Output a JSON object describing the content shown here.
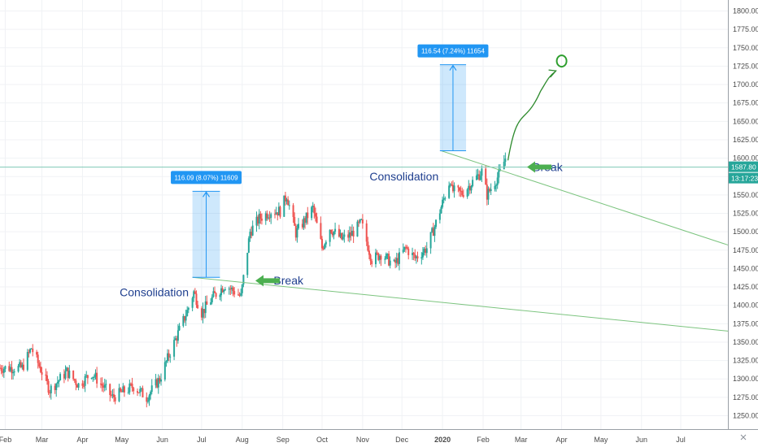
{
  "chart_data": {
    "type": "candlestick",
    "y_axis": {
      "ylim": [
        1235,
        1810
      ],
      "tick_labels": [
        "1250.00",
        "1275.00",
        "1300.00",
        "1325.00",
        "1350.00",
        "1375.00",
        "1400.00",
        "1425.00",
        "1450.00",
        "1475.00",
        "1500.00",
        "1525.00",
        "1550.00",
        "1575.00",
        "1600.00",
        "1625.00",
        "1650.00",
        "1675.00",
        "1700.00",
        "1725.00",
        "1750.00",
        "1775.00",
        "1800.00"
      ]
    },
    "x_axis": {
      "tick_labels": [
        "Feb",
        "Mar",
        "Apr",
        "May",
        "Jun",
        "Jul",
        "Aug",
        "Sep",
        "Oct",
        "Nov",
        "Dec",
        "2020",
        "Feb",
        "Mar",
        "Apr",
        "May",
        "Jun",
        "Jul"
      ],
      "tick_dates": [
        "2019-02-01",
        "2019-03-01",
        "2019-04-01",
        "2019-05-01",
        "2019-06-01",
        "2019-07-01",
        "2019-08-01",
        "2019-09-01",
        "2019-10-01",
        "2019-11-01",
        "2019-12-01",
        "2020-01-01",
        "2020-02-01",
        "2020-03-01",
        "2020-04-01",
        "2020-05-01",
        "2020-06-01",
        "2020-07-01"
      ],
      "range": [
        "2019-01-28",
        "2020-08-06"
      ]
    },
    "colors": {
      "up": "#26a69a",
      "down": "#ef5350",
      "trend": "#7cc47f",
      "arrow": "#4caf50",
      "measure": "#2196f3",
      "annotation": "#1f3f8f"
    },
    "price_path": [
      [
        "2019-01-28",
        1315
      ],
      [
        "2019-02-14",
        1315
      ],
      [
        "2019-02-21",
        1342
      ],
      [
        "2019-03-07",
        1285
      ],
      [
        "2019-03-20",
        1310
      ],
      [
        "2019-03-29",
        1292
      ],
      [
        "2019-04-08",
        1308
      ],
      [
        "2019-04-24",
        1275
      ],
      [
        "2019-05-10",
        1290
      ],
      [
        "2019-05-20",
        1275
      ],
      [
        "2019-05-30",
        1300
      ],
      [
        "2019-06-06",
        1332
      ],
      [
        "2019-06-20",
        1392
      ],
      [
        "2019-06-25",
        1418
      ],
      [
        "2019-07-01",
        1390
      ],
      [
        "2019-07-10",
        1412
      ],
      [
        "2019-07-19",
        1428
      ],
      [
        "2019-07-31",
        1412
      ],
      [
        "2019-08-07",
        1500
      ],
      [
        "2019-08-14",
        1518
      ],
      [
        "2019-08-23",
        1528
      ],
      [
        "2019-08-30",
        1528
      ],
      [
        "2019-09-04",
        1550
      ],
      [
        "2019-09-11",
        1498
      ],
      [
        "2019-09-24",
        1532
      ],
      [
        "2019-10-01",
        1478
      ],
      [
        "2019-10-07",
        1505
      ],
      [
        "2019-10-16",
        1490
      ],
      [
        "2019-10-23",
        1496
      ],
      [
        "2019-10-31",
        1512
      ],
      [
        "2019-11-08",
        1462
      ],
      [
        "2019-11-15",
        1470
      ],
      [
        "2019-11-25",
        1455
      ],
      [
        "2019-12-04",
        1478
      ],
      [
        "2019-12-11",
        1464
      ],
      [
        "2019-12-20",
        1478
      ],
      [
        "2019-12-27",
        1512
      ],
      [
        "2020-01-03",
        1550
      ],
      [
        "2020-01-07",
        1572
      ],
      [
        "2020-01-08",
        1556
      ],
      [
        "2020-01-16",
        1552
      ],
      [
        "2020-01-24",
        1568
      ],
      [
        "2020-01-31",
        1582
      ],
      [
        "2020-02-04",
        1550
      ],
      [
        "2020-02-14",
        1580
      ],
      [
        "2020-02-18",
        1600
      ]
    ],
    "current_price": 1587.8,
    "price_label": "1587.80",
    "countdown_label": "13:17:23",
    "annotations": [
      {
        "kind": "text",
        "text": "Consolidation"
      },
      {
        "kind": "text",
        "text": "Break"
      },
      {
        "kind": "text",
        "text": "Consolidation"
      },
      {
        "kind": "text",
        "text": "Break"
      }
    ],
    "measures": [
      {
        "from": [
          "2019-06-24",
          1438
        ],
        "to": [
          "2019-07-15",
          1555
        ],
        "label": "116.09 (8.07%) 11609"
      },
      {
        "from": [
          "2019-12-30",
          1610
        ],
        "to": [
          "2020-01-19",
          1727
        ],
        "label": "116.54 (7.24%) 11654"
      }
    ],
    "trendlines": [
      {
        "from": [
          "2019-06-24",
          1438
        ],
        "to": [
          "2020-08-06",
          1365
        ]
      },
      {
        "from": [
          "2019-12-31",
          1610
        ],
        "to": [
          "2020-08-06",
          1482
        ]
      }
    ],
    "projection": {
      "from": [
        "2020-02-20",
        1597
      ],
      "to": [
        "2020-04-01",
        1722
      ],
      "target_circle": [
        "2020-04-01",
        1732
      ]
    }
  }
}
